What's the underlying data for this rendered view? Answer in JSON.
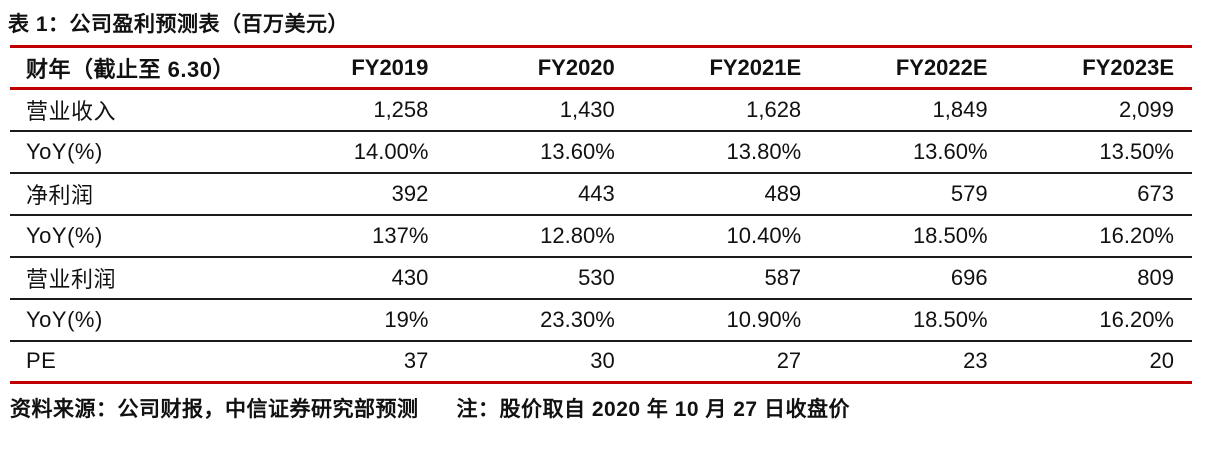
{
  "title": "表 1：公司盈利预测表（百万美元）",
  "colors": {
    "accent_red": "#C00000",
    "row_rule_black": "#1A1A1A",
    "text": "#111111"
  },
  "table": {
    "header": [
      "财年（截止至 6.30）",
      "FY2019",
      "FY2020",
      "FY2021E",
      "FY2022E",
      "FY2023E"
    ],
    "rows": [
      [
        "营业收入",
        "1,258",
        "1,430",
        "1,628",
        "1,849",
        "2,099"
      ],
      [
        "YoY(%)",
        "14.00%",
        "13.60%",
        "13.80%",
        "13.60%",
        "13.50%"
      ],
      [
        "净利润",
        "392",
        "443",
        "489",
        "579",
        "673"
      ],
      [
        "YoY(%)",
        "137%",
        "12.80%",
        "10.40%",
        "18.50%",
        "16.20%"
      ],
      [
        "营业利润",
        "430",
        "530",
        "587",
        "696",
        "809"
      ],
      [
        "YoY(%)",
        "19%",
        "23.30%",
        "10.90%",
        "18.50%",
        "16.20%"
      ],
      [
        "PE",
        "37",
        "30",
        "27",
        "23",
        "20"
      ]
    ]
  },
  "footer": {
    "source": "资料来源：公司财报，中信证券研究部预测",
    "note": "注：股价取自 2020 年 10 月 27 日收盘价"
  }
}
